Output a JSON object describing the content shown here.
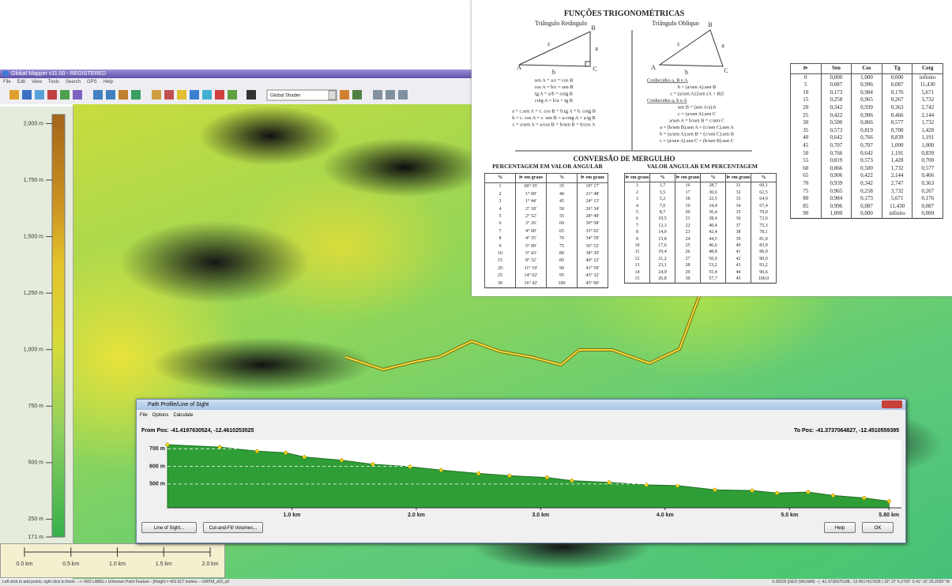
{
  "window": {
    "title": "Global Mapper v11.00 - REGISTERED",
    "menu": [
      "File",
      "Edit",
      "View",
      "Tools",
      "Search",
      "GPS",
      "Help"
    ],
    "shader": "Global Shader"
  },
  "legend": {
    "range": [
      171,
      2040
    ],
    "ticks": [
      {
        "value": 2000,
        "label": "2,000 m"
      },
      {
        "value": 1750,
        "label": "1,750 m"
      },
      {
        "value": 1500,
        "label": "1,500 m"
      },
      {
        "value": 1250,
        "label": "1,250 m"
      },
      {
        "value": 1000,
        "label": "1,000 m"
      },
      {
        "value": 750,
        "label": "750 m"
      },
      {
        "value": 500,
        "label": "500 m"
      },
      {
        "value": 250,
        "label": "250 m"
      },
      {
        "value": 171,
        "label": "171 m"
      }
    ]
  },
  "scale_bar": {
    "xlim": [
      0,
      2
    ],
    "ticks": [
      {
        "value": 0,
        "label": "0.0 km"
      },
      {
        "value": 0.5,
        "label": "0.5 km"
      },
      {
        "value": 1,
        "label": "1.0 km"
      },
      {
        "value": 1.5,
        "label": "1.5 km"
      },
      {
        "value": 2,
        "label": "2.0 km"
      }
    ]
  },
  "status_bar": {
    "left": "Left click to add points, right click to finish. --> <NO LABEL> Unknown Point Feature - [Height = 401.617 meters - <SRTM_s03_s0",
    "right": "0.28226 [GEO (WGS84) - ( -41.3736675188, -12.4517417628 ) 32° 27' 6.2703\" S 41° 22' 25.2035\" W"
  },
  "document": {
    "title": "FUNÇÕES TRIGONOMÉTRICAS",
    "right_triangle": {
      "heading": "Triângulo Retângulo",
      "labels": [
        "A",
        "B",
        "C",
        "a",
        "b",
        "c"
      ],
      "formulas": [
        "sen A = a/c = cos B",
        "cos A = b/c = sen B",
        "tg A = a/b = cotg B",
        "cotg A = b/a = tg B",
        "a = c.sen A = c. cos B = b.tg A = b. cotg B",
        "b = c. cos A = c. sen B = a.cotg A = a.tg B",
        "c = a/sen A = a/cos B = b/sen B = b/cos A"
      ]
    },
    "oblique_triangle": {
      "heading": "Triângulo Obliquo",
      "labels": [
        "A",
        "B",
        "C",
        "a",
        "b",
        "c"
      ],
      "formulas": [
        "Conhecidos a, B e A",
        "b = (a/sen A).sen B",
        "c = (a/sen A).[sen (A + B)]",
        "Conhecidos a, b e A",
        "sen B = (sen A/a).b",
        "c = (a/sen A).sen C",
        "a/sen A = b/sen B = c/sen C",
        "a = (b/sen B).sen A = (c/sen C).sen A",
        "b = (a/sen A).sen B = (c/sen C).sen B",
        "c = (a/sen A).sen C = (b/sen B).sen C"
      ]
    },
    "conversion_title": "CONVERSÃO DE MERGULHO",
    "percent_to_angle": {
      "title": "PERCENTAGEM EM VALOR ANGULAR",
      "header": [
        "%",
        "⊳ em graus",
        "%",
        "⊳ em graus"
      ],
      "rows": [
        [
          "1",
          "00° 35'",
          "35",
          "19° 17'"
        ],
        [
          "2",
          "1° 09'",
          "40",
          "21° 48'"
        ],
        [
          "3",
          "1° 44'",
          "45",
          "24° 13'"
        ],
        [
          "4",
          "2° 18'",
          "50",
          "26° 34'"
        ],
        [
          "5",
          "2° 52'",
          "55",
          "28° 49'"
        ],
        [
          "6",
          "3° 26'",
          "60",
          "30° 58'"
        ],
        [
          "7",
          "4° 00'",
          "65",
          "33° 02'"
        ],
        [
          "8",
          "4° 35'",
          "70",
          "34° 59'"
        ],
        [
          "9",
          "5° 09'",
          "75",
          "36° 52'"
        ],
        [
          "10",
          "5° 43'",
          "80",
          "38° 39'"
        ],
        [
          "15",
          "8° 32'",
          "85",
          "40° 22'"
        ],
        [
          "20",
          "11° 19'",
          "90",
          "41° 59'"
        ],
        [
          "25",
          "14° 02'",
          "95",
          "43° 32'"
        ],
        [
          "30",
          "16° 42'",
          "100",
          "45° 00'"
        ]
      ]
    },
    "angle_to_percent": {
      "title": "VALOR ANGULAR EM PERCENTAGEM",
      "header": [
        "⊳ em graus",
        "%",
        "⊳ em graus",
        "%",
        "⊳ em graus",
        "%"
      ],
      "rows": [
        [
          "1",
          "1,7",
          "16",
          "28,7",
          "31",
          "60,1"
        ],
        [
          "2",
          "3,5",
          "17",
          "30,6",
          "32",
          "62,5"
        ],
        [
          "3",
          "5,2",
          "18",
          "32,5",
          "33",
          "64,9"
        ],
        [
          "4",
          "7,0",
          "19",
          "34,4",
          "34",
          "67,4"
        ],
        [
          "5",
          "8,7",
          "20",
          "36,4",
          "35",
          "70,0"
        ],
        [
          "6",
          "10,5",
          "21",
          "38,4",
          "36",
          "72,6"
        ],
        [
          "7",
          "12,3",
          "22",
          "40,4",
          "37",
          "75,3"
        ],
        [
          "8",
          "14,0",
          "23",
          "42,4",
          "38",
          "78,1"
        ],
        [
          "9",
          "15,8",
          "24",
          "44,5",
          "39",
          "81,0"
        ],
        [
          "10",
          "17,6",
          "25",
          "46,6",
          "40",
          "83,9"
        ],
        [
          "11",
          "19,4",
          "26",
          "48,8",
          "41",
          "86,9"
        ],
        [
          "12",
          "21,2",
          "27",
          "50,9",
          "42",
          "90,0"
        ],
        [
          "13",
          "23,1",
          "28",
          "53,2",
          "43",
          "93,2"
        ],
        [
          "14",
          "24,9",
          "29",
          "55,4",
          "44",
          "96,6"
        ],
        [
          "15",
          "26,8",
          "30",
          "57,7",
          "45",
          "100,0"
        ]
      ]
    },
    "trig_table": {
      "header": [
        "⊳",
        "Sen",
        "Cos",
        "Tg",
        "Cotg"
      ],
      "rows": [
        [
          "0",
          "0,000",
          "1,000",
          "0,000",
          "infinito"
        ],
        [
          "5",
          "0,087",
          "0,996",
          "0,087",
          "11,430"
        ],
        [
          "10",
          "0,173",
          "0,984",
          "0,176",
          "5,671"
        ],
        [
          "15",
          "0,258",
          "0,965",
          "0,267",
          "3,732"
        ],
        [
          "20",
          "0,342",
          "0,939",
          "0,363",
          "2,742"
        ],
        [
          "25",
          "0,422",
          "0,906",
          "0,466",
          "2,144"
        ],
        [
          "30",
          "0,500",
          "0,866",
          "0,577",
          "1,732"
        ],
        [
          "35",
          "0,573",
          "0,819",
          "0,700",
          "1,428"
        ],
        [
          "40",
          "0,642",
          "0,766",
          "0,839",
          "1,191"
        ],
        [
          "45",
          "0,707",
          "0,707",
          "1,000",
          "1,000"
        ],
        [
          "50",
          "0,766",
          "0,642",
          "1,191",
          "0,839"
        ],
        [
          "55",
          "0,819",
          "0,573",
          "1,428",
          "0,700"
        ],
        [
          "60",
          "0,866",
          "0,500",
          "1,732",
          "0,577"
        ],
        [
          "65",
          "0,906",
          "0,422",
          "2,144",
          "0,466"
        ],
        [
          "70",
          "0,939",
          "0,342",
          "2,747",
          "0,363"
        ],
        [
          "75",
          "0,965",
          "0,258",
          "3,732",
          "0,267"
        ],
        [
          "80",
          "0,984",
          "0,173",
          "5,671",
          "0,176"
        ],
        [
          "85",
          "0,996",
          "0,087",
          "11,430",
          "0,087"
        ],
        [
          "90",
          "1,000",
          "0,000",
          "infinito",
          "0,000"
        ]
      ]
    }
  },
  "profile": {
    "title": "Path Profile/Line of Sight",
    "menu": [
      "File",
      "Options",
      "Calculate"
    ],
    "from_pos": "From Pos: -41.4197630524, -12.4610253525",
    "to_pos": "To Pos: -41.3737064827, -12.4510559395",
    "buttons": [
      "Line of Sight...",
      "Cut-and-Fill Volumes...",
      "Help",
      "OK"
    ],
    "chart_data": {
      "type": "area",
      "color": "#2f9e36",
      "point_color": "#f2d21b",
      "x": [
        0,
        0.42,
        0.72,
        0.95,
        1.1,
        1.4,
        1.65,
        1.95,
        2.2,
        2.5,
        2.75,
        3.05,
        3.25,
        3.55,
        3.85,
        4.1,
        4.4,
        4.7,
        4.9,
        5.15,
        5.35,
        5.6,
        5.8
      ],
      "values": [
        723,
        709,
        686,
        677,
        653,
        635,
        612,
        598,
        579,
        560,
        547,
        537,
        519,
        509,
        495,
        491,
        467,
        463,
        449,
        454,
        435,
        421,
        402
      ],
      "xlim": [
        0,
        5.9
      ],
      "ylim": [
        365,
        750
      ],
      "xticks": [
        {
          "value": 1,
          "label": "1.0 km"
        },
        {
          "value": 2,
          "label": "2.0 km"
        },
        {
          "value": 3,
          "label": "3.0 km"
        },
        {
          "value": 4,
          "label": "4.0 km"
        },
        {
          "value": 5,
          "label": "5.0 km"
        },
        {
          "value": 5.8,
          "label": "5.80 km"
        }
      ],
      "yticks": [
        {
          "value": 700,
          "label": "700 m"
        },
        {
          "value": 600,
          "label": "600 m"
        },
        {
          "value": 500,
          "label": "500 m"
        }
      ],
      "grid": true
    }
  }
}
